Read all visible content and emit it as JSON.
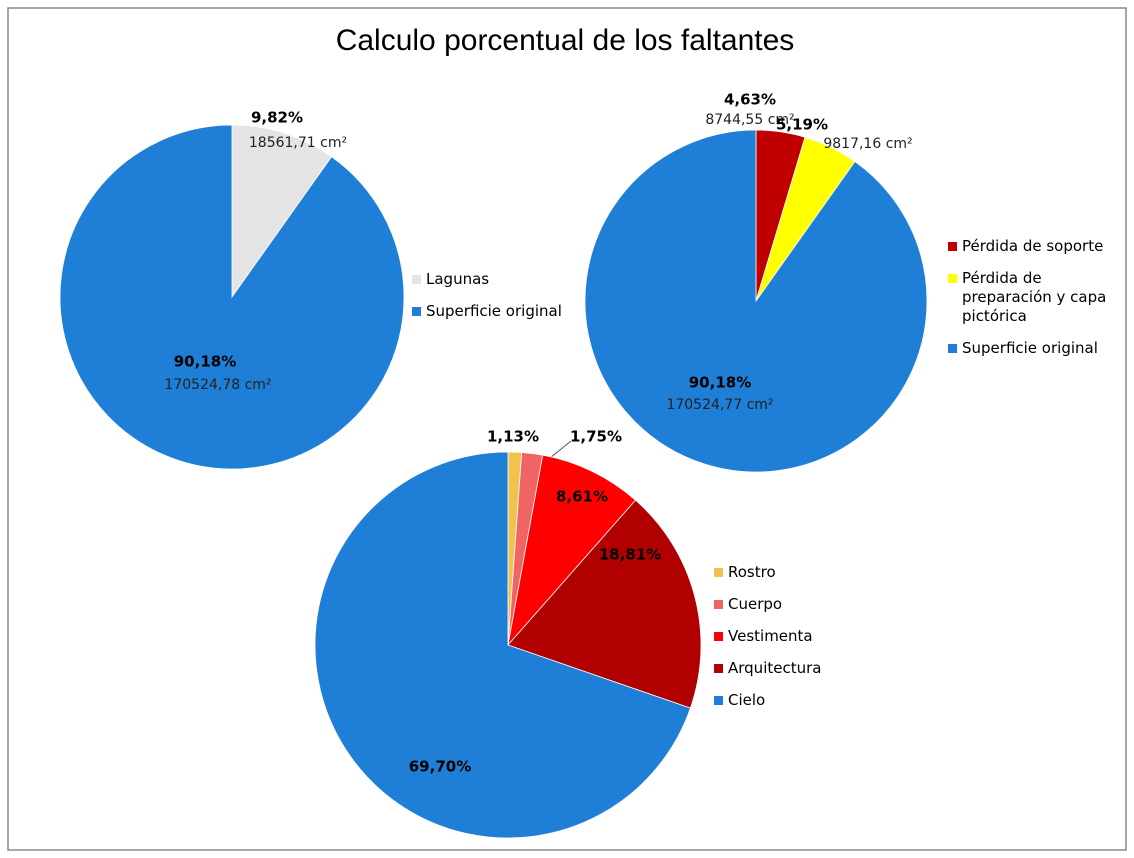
{
  "title": "Calculo porcentual de los faltantes",
  "chart_data": [
    {
      "type": "pie",
      "categories": [
        "Lagunas",
        "Superficie original"
      ],
      "values": [
        9.82,
        90.18
      ],
      "value_labels": [
        "9,82%",
        "90,18%"
      ],
      "sublabels": [
        "18561,71 cm²",
        "170524,78 cm²"
      ],
      "colors": [
        "#e4e4e4",
        "#1f7fd6"
      ]
    },
    {
      "type": "pie",
      "categories": [
        "Pérdida de soporte",
        "Pérdida de preparación y capa pictórica",
        "Superficie original"
      ],
      "values": [
        4.63,
        5.19,
        90.18
      ],
      "value_labels": [
        "4,63%",
        "5,19%",
        "90,18%"
      ],
      "sublabels": [
        "8744,55 cm²",
        "9817,16 cm²",
        "170524,77 cm²"
      ],
      "colors": [
        "#c00000",
        "#ffff00",
        "#1f7fd6"
      ]
    },
    {
      "type": "pie",
      "categories": [
        "Rostro",
        "Cuerpo",
        "Vestimenta",
        "Arquitectura",
        "Cielo"
      ],
      "values": [
        1.13,
        1.75,
        8.61,
        18.81,
        69.7
      ],
      "value_labels": [
        "1,13%",
        "1,75%",
        "8,61%",
        "18,81%",
        "69,70%"
      ],
      "colors": [
        "#f2c14e",
        "#f06464",
        "#ff0000",
        "#b00000",
        "#1f7fd6"
      ]
    }
  ]
}
